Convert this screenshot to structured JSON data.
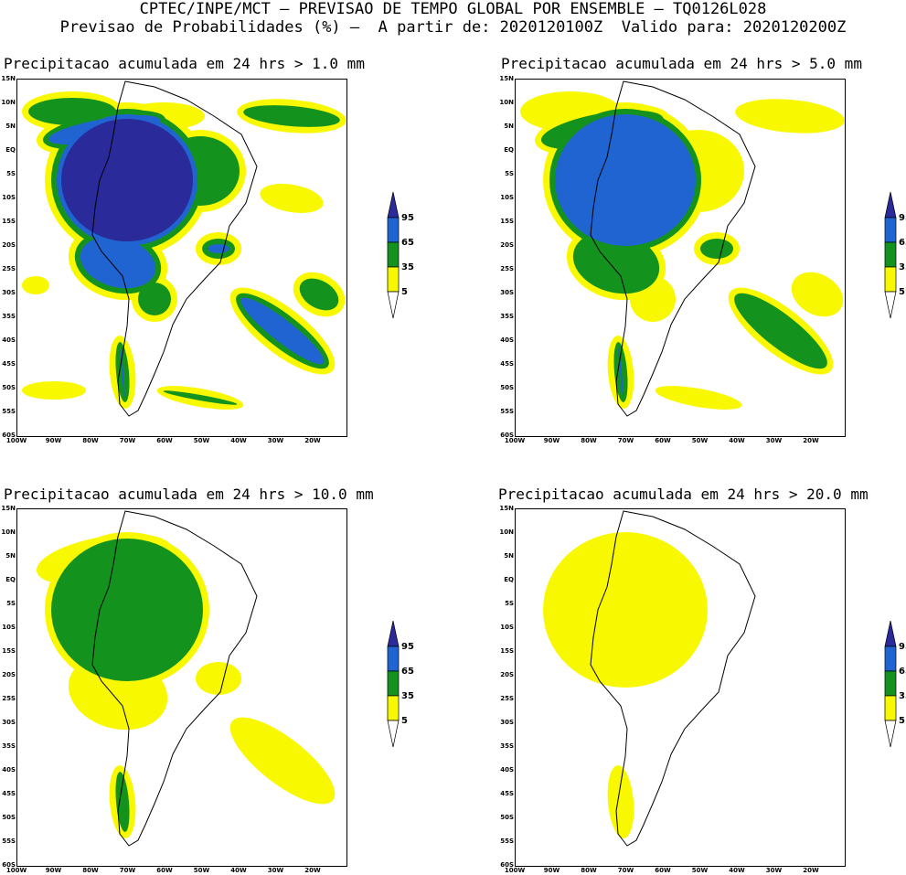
{
  "header": {
    "line1": "CPTEC/INPE/MCT – PREVISAO DE TEMPO GLOBAL POR ENSEMBLE – TQ0126L028",
    "line2": "Previsao de Probabilidades (%) –  A partir de: 2020120100Z  Valido para: 2020120200Z"
  },
  "panels": [
    {
      "title": "Precipitacao acumulada em 24 hrs > 1.0 mm",
      "level": 4
    },
    {
      "title": "Precipitacao acumulada em 24 hrs > 5.0 mm",
      "level": 3
    },
    {
      "title": "Precipitacao acumulada em 24 hrs > 10.0 mm",
      "level": 2
    },
    {
      "title": "Precipitacao acumulada em 24 hrs > 20.0 mm",
      "level": 1
    }
  ],
  "lat_labels": [
    "15N",
    "10N",
    "5N",
    "EQ",
    "5S",
    "10S",
    "15S",
    "20S",
    "25S",
    "30S",
    "35S",
    "40S",
    "45S",
    "50S",
    "55S",
    "60S"
  ],
  "lon_labels": [
    "100W",
    "90W",
    "80W",
    "70W",
    "60W",
    "50W",
    "40W",
    "30W",
    "20W"
  ],
  "legend": {
    "labels": [
      "95",
      "65",
      "35",
      "5"
    ],
    "colors": {
      "c95": "#2a2a9a",
      "c65": "#1f64d0",
      "c35": "#14921e",
      "c5": "#f8f800"
    }
  },
  "colors": {
    "yellow": "#f8f800",
    "green": "#14921e",
    "blue": "#1f64d0",
    "navy": "#2a2a9a"
  }
}
